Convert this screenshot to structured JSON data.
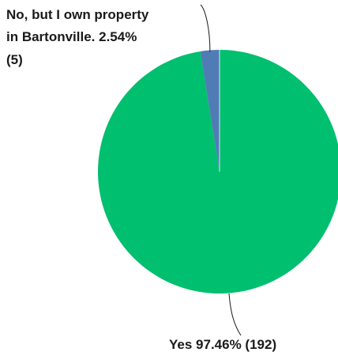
{
  "chart_data": {
    "type": "pie",
    "slices": [
      {
        "label": "Yes",
        "percent": 97.46,
        "percent_text": "97.46%",
        "count": 192,
        "count_text": "(192)",
        "color": "#00bf6f"
      },
      {
        "label": "No, but I own property in Bartonville.",
        "percent": 2.54,
        "percent_text": "2.54%",
        "count": 5,
        "count_text": "(5)",
        "color": "#507cb6"
      }
    ],
    "label_lines": {
      "no": [
        "No, but I own property",
        "in Bartonville. 2.54%",
        "(5)"
      ],
      "yes": [
        "Yes 97.46% (192)"
      ]
    }
  }
}
